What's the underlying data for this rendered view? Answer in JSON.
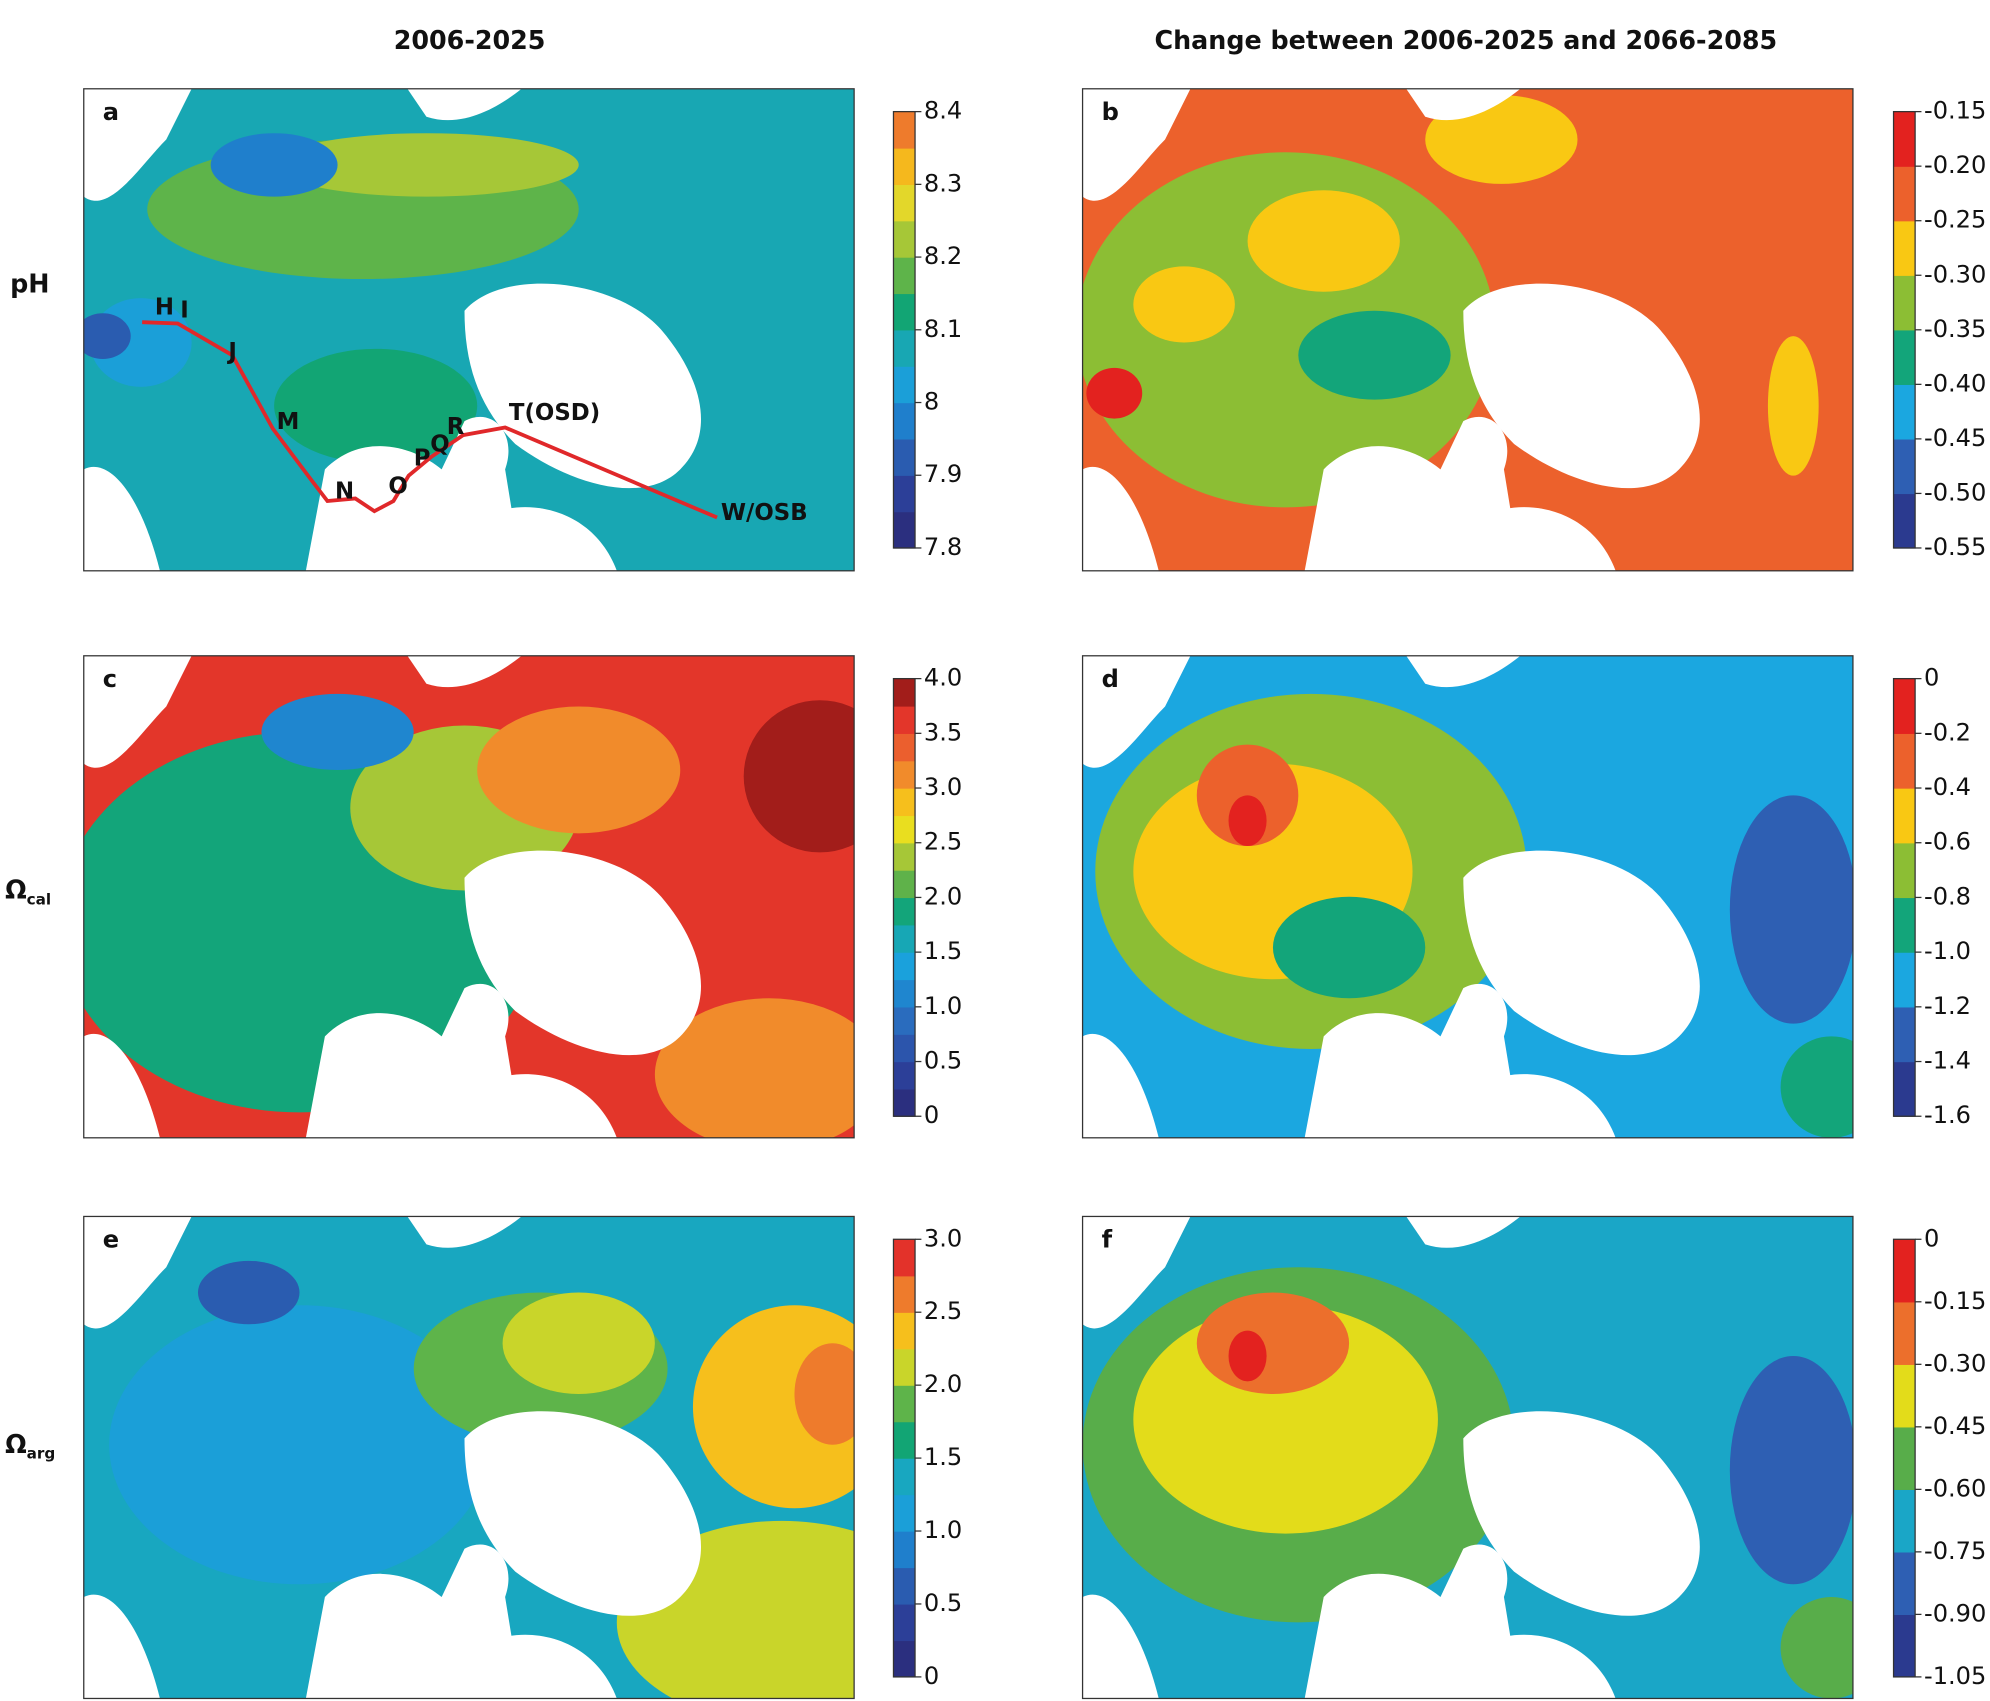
{
  "column_titles": [
    "2006-2025",
    "Change between 2006-2025 and 2066-2085"
  ],
  "row_labels": [
    {
      "symbol": "pH"
    },
    {
      "symbol": "Ω",
      "subscript": "cal"
    },
    {
      "symbol": "Ω",
      "subscript": "arg"
    }
  ],
  "panels": [
    {
      "letter": "a",
      "colorbar": {
        "lim": [
          7.8,
          8.4
        ],
        "ticks": [
          7.8,
          7.9,
          8.0,
          8.1,
          8.2,
          8.3,
          8.4
        ],
        "colors": [
          "#2b2f7f",
          "#2c3f98",
          "#2a5cb0",
          "#1f7fcc",
          "#1b9fd8",
          "#18a7b3",
          "#12a574",
          "#5eb44a",
          "#a6c737",
          "#e3d72a",
          "#f5b81d",
          "#ee7b2c"
        ]
      },
      "route_labels": [
        "H",
        "I",
        "J",
        "M",
        "N",
        "O",
        "P",
        "Q",
        "R",
        "T(OSD)",
        "W/OSB"
      ]
    },
    {
      "letter": "b",
      "colorbar": {
        "lim": [
          -0.55,
          -0.15
        ],
        "ticks": [
          -0.55,
          {
            "value": -0.5,
            "label": "-0.50"
          },
          -0.45,
          {
            "value": -0.4,
            "label": "-0.40"
          },
          -0.35,
          {
            "value": -0.3,
            "label": "-0.30"
          },
          -0.25,
          {
            "value": -0.2,
            "label": "-0.20"
          },
          -0.15
        ],
        "colors": [
          "#2b3a8f",
          "#2e5fb3",
          "#1ba7e0",
          "#13a57a",
          "#8cbe34",
          "#f9c813",
          "#ec612c",
          "#e3221f"
        ]
      }
    },
    {
      "letter": "c",
      "colorbar": {
        "lim": [
          0,
          4
        ],
        "ticks": [
          0,
          0.5,
          {
            "value": 1,
            "label": "1.0"
          },
          1.5,
          {
            "value": 2,
            "label": "2.0"
          },
          2.5,
          {
            "value": 3,
            "label": "3.0"
          },
          3.5,
          {
            "value": 4,
            "label": "4.0"
          }
        ],
        "colors": [
          "#2b2f7f",
          "#2c3f98",
          "#2c55ac",
          "#2a6cbe",
          "#1f86cf",
          "#1aa1dc",
          "#17a7b5",
          "#13a57a",
          "#5fb24a",
          "#a6c737",
          "#e9de1f",
          "#f6bf1c",
          "#f18b2b",
          "#eb5f2e",
          "#e3362a",
          "#a21d1a"
        ]
      }
    },
    {
      "letter": "d",
      "colorbar": {
        "lim": [
          -1.6,
          0
        ],
        "ticks": [
          -1.6,
          -1.4,
          -1.2,
          {
            "value": -1,
            "label": "-1.0"
          },
          -0.8,
          -0.6,
          -0.4,
          -0.2,
          0
        ],
        "colors": [
          "#2b3a8f",
          "#2e5fb3",
          "#1ba7e0",
          "#13a57a",
          "#8cbe34",
          "#f9c813",
          "#ec612c",
          "#e3221f"
        ]
      }
    },
    {
      "letter": "e",
      "colorbar": {
        "lim": [
          0,
          3
        ],
        "ticks": [
          0,
          0.5,
          {
            "value": 1,
            "label": "1.0"
          },
          1.5,
          {
            "value": 2,
            "label": "2.0"
          },
          2.5,
          {
            "value": 3,
            "label": "3.0"
          }
        ],
        "colors": [
          "#2b2f7f",
          "#2c3f98",
          "#2a5cb0",
          "#1f7fcc",
          "#1b9fd8",
          "#18a7c0",
          "#12a574",
          "#5eb44a",
          "#c9d52a",
          "#f6bf1c",
          "#ee7b2c",
          "#e3322a"
        ]
      }
    },
    {
      "letter": "f",
      "colorbar": {
        "lim": [
          -1.05,
          0
        ],
        "ticks": [
          -1.05,
          {
            "value": -0.9,
            "label": "-0.90"
          },
          -0.75,
          {
            "value": -0.6,
            "label": "-0.60"
          },
          -0.45,
          {
            "value": -0.3,
            "label": "-0.30"
          },
          -0.15,
          0
        ],
        "colors": [
          "#2b3a8f",
          "#2e5fb3",
          "#1aa6c7",
          "#58ad4a",
          "#e3dc1a",
          "#ec6f2c",
          "#e3221f"
        ]
      }
    }
  ]
}
